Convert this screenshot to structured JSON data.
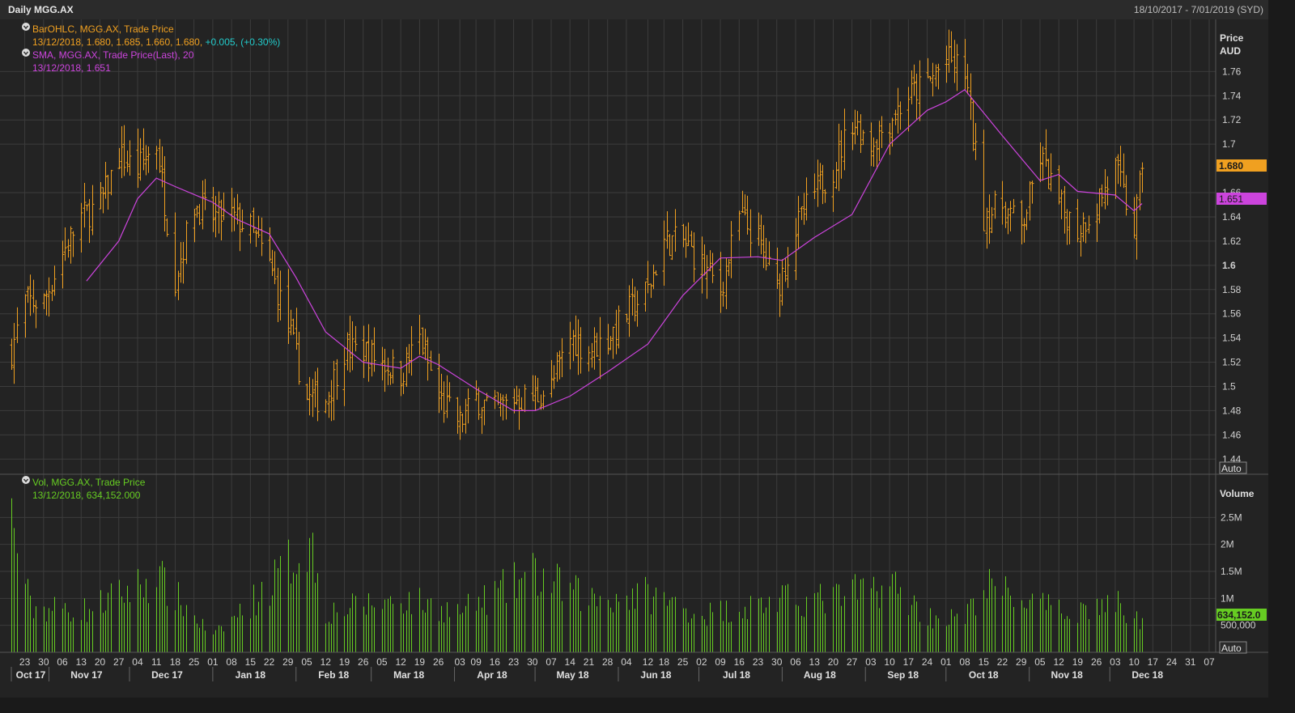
{
  "header": {
    "title": "Daily MGG.AX",
    "range": "18/10/2017 - 7/01/2019 (SYD)"
  },
  "colors": {
    "bar": "#f0a020",
    "sma": "#cc44dd",
    "vol": "#66cc22",
    "change": "#22cccc",
    "grid": "#3c3c3c"
  },
  "legend_price": {
    "icon": "collapse-icon",
    "l1": "BarOHLC, MGG.AX, Trade Price",
    "l2": "13/12/2018, 1.680, 1.685, 1.660, 1.680,",
    "l2_change": "+0.005, (+0.30%)",
    "l3": "SMA, MGG.AX, Trade Price(Last),  20",
    "l4": "13/12/2018, 1.651"
  },
  "legend_vol": {
    "icon": "collapse-icon",
    "l1": "Vol, MGG.AX, Trade Price",
    "l2": "13/12/2018, 634,152.000"
  },
  "price_axis": {
    "title": "Price",
    "unit": "AUD",
    "ticks": [
      {
        "v": 1.44,
        "label": "1.44"
      },
      {
        "v": 1.46,
        "label": "1.46"
      },
      {
        "v": 1.48,
        "label": "1.48"
      },
      {
        "v": 1.5,
        "label": "1.5"
      },
      {
        "v": 1.52,
        "label": "1.52"
      },
      {
        "v": 1.54,
        "label": "1.54"
      },
      {
        "v": 1.56,
        "label": "1.56"
      },
      {
        "v": 1.58,
        "label": "1.58"
      },
      {
        "v": 1.6,
        "label": "1.6"
      },
      {
        "v": 1.62,
        "label": "1.62"
      },
      {
        "v": 1.64,
        "label": "1.64"
      },
      {
        "v": 1.66,
        "label": "1.66"
      },
      {
        "v": 1.7,
        "label": "1.7"
      },
      {
        "v": 1.72,
        "label": "1.72"
      },
      {
        "v": 1.74,
        "label": "1.74"
      },
      {
        "v": 1.76,
        "label": "1.76"
      }
    ],
    "last_price_tag": "1.680",
    "sma_tag": "1.651",
    "auto_label": "Auto"
  },
  "vol_axis": {
    "title": "Volume",
    "ticks": [
      {
        "v": 500000,
        "label": "500,000"
      },
      {
        "v": 1000000,
        "label": "1M"
      },
      {
        "v": 1500000,
        "label": "1.5M"
      },
      {
        "v": 2000000,
        "label": "2M"
      },
      {
        "v": 2500000,
        "label": "2.5M"
      }
    ],
    "last_vol_tag": "634,152.0",
    "auto_label": "Auto"
  },
  "x_axis": {
    "day_ticks": [
      {
        "d": "2017-10-23",
        "label": "23"
      },
      {
        "d": "2017-10-30",
        "label": "30"
      },
      {
        "d": "2017-11-06",
        "label": "06"
      },
      {
        "d": "2017-11-13",
        "label": "13"
      },
      {
        "d": "2017-11-20",
        "label": "20"
      },
      {
        "d": "2017-11-27",
        "label": "27"
      },
      {
        "d": "2017-12-04",
        "label": "04"
      },
      {
        "d": "2017-12-11",
        "label": "11"
      },
      {
        "d": "2017-12-18",
        "label": "18"
      },
      {
        "d": "2017-12-25",
        "label": "25"
      },
      {
        "d": "2018-01-01",
        "label": "01"
      },
      {
        "d": "2018-01-08",
        "label": "08"
      },
      {
        "d": "2018-01-15",
        "label": "15"
      },
      {
        "d": "2018-01-22",
        "label": "22"
      },
      {
        "d": "2018-01-29",
        "label": "29"
      },
      {
        "d": "2018-02-05",
        "label": "05"
      },
      {
        "d": "2018-02-12",
        "label": "12"
      },
      {
        "d": "2018-02-19",
        "label": "19"
      },
      {
        "d": "2018-02-26",
        "label": "26"
      },
      {
        "d": "2018-03-05",
        "label": "05"
      },
      {
        "d": "2018-03-12",
        "label": "12"
      },
      {
        "d": "2018-03-19",
        "label": "19"
      },
      {
        "d": "2018-03-26",
        "label": "26"
      },
      {
        "d": "2018-04-03",
        "label": "03"
      },
      {
        "d": "2018-04-09",
        "label": "09"
      },
      {
        "d": "2018-04-16",
        "label": "16"
      },
      {
        "d": "2018-04-23",
        "label": "23"
      },
      {
        "d": "2018-04-30",
        "label": "30"
      },
      {
        "d": "2018-05-07",
        "label": "07"
      },
      {
        "d": "2018-05-14",
        "label": "14"
      },
      {
        "d": "2018-05-21",
        "label": "21"
      },
      {
        "d": "2018-05-28",
        "label": "28"
      },
      {
        "d": "2018-06-04",
        "label": "04"
      },
      {
        "d": "2018-06-12",
        "label": "12"
      },
      {
        "d": "2018-06-18",
        "label": "18"
      },
      {
        "d": "2018-06-25",
        "label": "25"
      },
      {
        "d": "2018-07-02",
        "label": "02"
      },
      {
        "d": "2018-07-09",
        "label": "09"
      },
      {
        "d": "2018-07-16",
        "label": "16"
      },
      {
        "d": "2018-07-23",
        "label": "23"
      },
      {
        "d": "2018-07-30",
        "label": "30"
      },
      {
        "d": "2018-08-06",
        "label": "06"
      },
      {
        "d": "2018-08-13",
        "label": "13"
      },
      {
        "d": "2018-08-20",
        "label": "20"
      },
      {
        "d": "2018-08-27",
        "label": "27"
      },
      {
        "d": "2018-09-03",
        "label": "03"
      },
      {
        "d": "2018-09-10",
        "label": "10"
      },
      {
        "d": "2018-09-17",
        "label": "17"
      },
      {
        "d": "2018-09-24",
        "label": "24"
      },
      {
        "d": "2018-10-01",
        "label": "01"
      },
      {
        "d": "2018-10-08",
        "label": "08"
      },
      {
        "d": "2018-10-15",
        "label": "15"
      },
      {
        "d": "2018-10-22",
        "label": "22"
      },
      {
        "d": "2018-10-29",
        "label": "29"
      },
      {
        "d": "2018-11-05",
        "label": "05"
      },
      {
        "d": "2018-11-12",
        "label": "12"
      },
      {
        "d": "2018-11-19",
        "label": "19"
      },
      {
        "d": "2018-11-26",
        "label": "26"
      },
      {
        "d": "2018-12-03",
        "label": "03"
      },
      {
        "d": "2018-12-10",
        "label": "10"
      },
      {
        "d": "2018-12-17",
        "label": "17"
      },
      {
        "d": "2018-12-24",
        "label": "24"
      },
      {
        "d": "2018-12-31",
        "label": "31"
      },
      {
        "d": "2019-01-07",
        "label": "07"
      }
    ],
    "month_ticks": [
      {
        "d": "2017-10-18",
        "label": "Oct 17"
      },
      {
        "d": "2017-11-01",
        "label": "Nov 17"
      },
      {
        "d": "2017-12-01",
        "label": "Dec 17"
      },
      {
        "d": "2018-01-01",
        "label": "Jan 18"
      },
      {
        "d": "2018-02-01",
        "label": "Feb 18"
      },
      {
        "d": "2018-03-01",
        "label": "Mar 18"
      },
      {
        "d": "2018-04-01",
        "label": "Apr 18"
      },
      {
        "d": "2018-05-01",
        "label": "May 18"
      },
      {
        "d": "2018-06-01",
        "label": "Jun 18"
      },
      {
        "d": "2018-07-01",
        "label": "Jul 18"
      },
      {
        "d": "2018-08-01",
        "label": "Aug 18"
      },
      {
        "d": "2018-09-01",
        "label": "Sep 18"
      },
      {
        "d": "2018-10-01",
        "label": "Oct 18"
      },
      {
        "d": "2018-11-01",
        "label": "Nov 18"
      },
      {
        "d": "2018-12-01",
        "label": "Dec 18"
      }
    ]
  },
  "chart_data": {
    "type": "bar",
    "xlim": [
      "2017-10-18",
      "2019-01-07"
    ],
    "price_ylim": [
      1.4275,
      1.803
    ],
    "volume_ylim": [
      0,
      3300000
    ],
    "grid": true,
    "close_path": [
      [
        "2017-10-18",
        1.53
      ],
      [
        "2017-10-23",
        1.57
      ],
      [
        "2017-10-30",
        1.57
      ],
      [
        "2017-11-06",
        1.61
      ],
      [
        "2017-11-13",
        1.64
      ],
      [
        "2017-11-20",
        1.65
      ],
      [
        "2017-11-27",
        1.69
      ],
      [
        "2017-12-04",
        1.68
      ],
      [
        "2017-12-11",
        1.7
      ],
      [
        "2017-12-18",
        1.59
      ],
      [
        "2017-12-25",
        1.65
      ],
      [
        "2018-01-01",
        1.64
      ],
      [
        "2018-01-08",
        1.64
      ],
      [
        "2018-01-15",
        1.63
      ],
      [
        "2018-01-22",
        1.6
      ],
      [
        "2018-01-29",
        1.55
      ],
      [
        "2018-02-05",
        1.49
      ],
      [
        "2018-02-12",
        1.49
      ],
      [
        "2018-02-19",
        1.53
      ],
      [
        "2018-02-26",
        1.53
      ],
      [
        "2018-03-05",
        1.52
      ],
      [
        "2018-03-12",
        1.51
      ],
      [
        "2018-03-19",
        1.54
      ],
      [
        "2018-03-26",
        1.49
      ],
      [
        "2018-04-03",
        1.47
      ],
      [
        "2018-04-09",
        1.49
      ],
      [
        "2018-04-16",
        1.48
      ],
      [
        "2018-04-23",
        1.49
      ],
      [
        "2018-04-30",
        1.49
      ],
      [
        "2018-05-07",
        1.5
      ],
      [
        "2018-05-14",
        1.54
      ],
      [
        "2018-05-21",
        1.53
      ],
      [
        "2018-05-28",
        1.54
      ],
      [
        "2018-06-04",
        1.56
      ],
      [
        "2018-06-12",
        1.58
      ],
      [
        "2018-06-18",
        1.62
      ],
      [
        "2018-06-25",
        1.62
      ],
      [
        "2018-07-02",
        1.6
      ],
      [
        "2018-07-09",
        1.58
      ],
      [
        "2018-07-16",
        1.64
      ],
      [
        "2018-07-23",
        1.62
      ],
      [
        "2018-07-30",
        1.58
      ],
      [
        "2018-08-06",
        1.63
      ],
      [
        "2018-08-13",
        1.66
      ],
      [
        "2018-08-20",
        1.68
      ],
      [
        "2018-08-27",
        1.72
      ],
      [
        "2018-09-03",
        1.7
      ],
      [
        "2018-09-10",
        1.72
      ],
      [
        "2018-09-17",
        1.74
      ],
      [
        "2018-09-24",
        1.75
      ],
      [
        "2018-10-01",
        1.77
      ],
      [
        "2018-10-08",
        1.76
      ],
      [
        "2018-10-15",
        1.64
      ],
      [
        "2018-10-22",
        1.65
      ],
      [
        "2018-10-29",
        1.63
      ],
      [
        "2018-11-05",
        1.69
      ],
      [
        "2018-11-12",
        1.65
      ],
      [
        "2018-11-19",
        1.63
      ],
      [
        "2018-11-26",
        1.65
      ],
      [
        "2018-12-03",
        1.68
      ],
      [
        "2018-12-10",
        1.63
      ],
      [
        "2018-12-13",
        1.68
      ]
    ],
    "sma_20": [
      [
        "2017-11-15",
        1.587
      ],
      [
        "2017-11-27",
        1.62
      ],
      [
        "2017-12-04",
        1.655
      ],
      [
        "2017-12-11",
        1.672
      ],
      [
        "2017-12-18",
        1.665
      ],
      [
        "2018-01-01",
        1.652
      ],
      [
        "2018-01-10",
        1.638
      ],
      [
        "2018-01-22",
        1.626
      ],
      [
        "2018-02-01",
        1.59
      ],
      [
        "2018-02-12",
        1.545
      ],
      [
        "2018-02-26",
        1.52
      ],
      [
        "2018-03-12",
        1.515
      ],
      [
        "2018-03-19",
        1.525
      ],
      [
        "2018-03-26",
        1.518
      ],
      [
        "2018-04-09",
        1.498
      ],
      [
        "2018-04-23",
        1.48
      ],
      [
        "2018-05-01",
        1.48
      ],
      [
        "2018-05-14",
        1.492
      ],
      [
        "2018-05-28",
        1.512
      ],
      [
        "2018-06-12",
        1.535
      ],
      [
        "2018-06-25",
        1.575
      ],
      [
        "2018-07-09",
        1.606
      ],
      [
        "2018-07-23",
        1.607
      ],
      [
        "2018-08-01",
        1.604
      ],
      [
        "2018-08-13",
        1.623
      ],
      [
        "2018-08-27",
        1.642
      ],
      [
        "2018-09-10",
        1.7
      ],
      [
        "2018-09-24",
        1.728
      ],
      [
        "2018-10-01",
        1.735
      ],
      [
        "2018-10-08",
        1.745
      ],
      [
        "2018-10-22",
        1.707
      ],
      [
        "2018-11-05",
        1.67
      ],
      [
        "2018-11-12",
        1.675
      ],
      [
        "2018-11-19",
        1.661
      ],
      [
        "2018-12-03",
        1.658
      ],
      [
        "2018-12-10",
        1.645
      ],
      [
        "2018-12-13",
        1.651
      ]
    ],
    "volume_path": [
      [
        "2017-10-18",
        3000000
      ],
      [
        "2017-10-25",
        1000000
      ],
      [
        "2017-11-15",
        950000
      ],
      [
        "2017-12-11",
        1700000
      ],
      [
        "2018-01-01",
        350000
      ],
      [
        "2018-01-22",
        1500000
      ],
      [
        "2018-02-06",
        2550000
      ],
      [
        "2018-02-12",
        900000
      ],
      [
        "2018-03-12",
        1200000
      ],
      [
        "2018-04-03",
        900000
      ],
      [
        "2018-04-30",
        1750000
      ],
      [
        "2018-05-21",
        1200000
      ],
      [
        "2018-06-12",
        1300000
      ],
      [
        "2018-07-02",
        850000
      ],
      [
        "2018-07-30",
        1150000
      ],
      [
        "2018-08-20",
        1200000
      ],
      [
        "2018-09-10",
        1550000
      ],
      [
        "2018-09-24",
        800000
      ],
      [
        "2018-10-08",
        750000
      ],
      [
        "2018-10-15",
        1500000
      ],
      [
        "2018-11-12",
        900000
      ],
      [
        "2018-12-03",
        1100000
      ],
      [
        "2018-12-13",
        634152
      ]
    ],
    "last": {
      "date": "13/12/2018",
      "open": 1.68,
      "high": 1.685,
      "low": 1.66,
      "close": 1.68,
      "change": 0.005,
      "change_pct": 0.3,
      "sma20": 1.651,
      "volume": 634152
    }
  }
}
